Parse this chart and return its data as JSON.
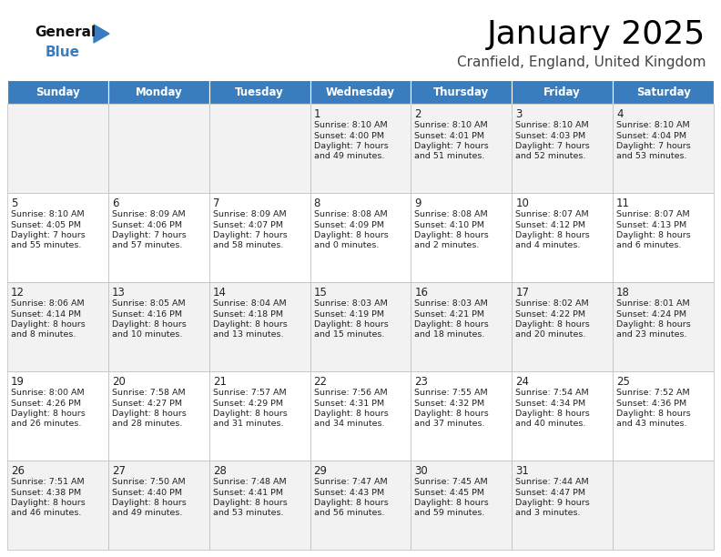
{
  "title": "January 2025",
  "subtitle": "Cranfield, England, United Kingdom",
  "header_color": "#3a7dbf",
  "header_text_color": "#ffffff",
  "weekdays": [
    "Sunday",
    "Monday",
    "Tuesday",
    "Wednesday",
    "Thursday",
    "Friday",
    "Saturday"
  ],
  "row_colors": [
    "#f2f2f2",
    "#ffffff"
  ],
  "text_color": "#222222",
  "days": [
    {
      "day": 1,
      "col": 3,
      "row": 0,
      "sunrise": "8:10 AM",
      "sunset": "4:00 PM",
      "dl1": "Daylight: 7 hours",
      "dl2": "and 49 minutes."
    },
    {
      "day": 2,
      "col": 4,
      "row": 0,
      "sunrise": "8:10 AM",
      "sunset": "4:01 PM",
      "dl1": "Daylight: 7 hours",
      "dl2": "and 51 minutes."
    },
    {
      "day": 3,
      "col": 5,
      "row": 0,
      "sunrise": "8:10 AM",
      "sunset": "4:03 PM",
      "dl1": "Daylight: 7 hours",
      "dl2": "and 52 minutes."
    },
    {
      "day": 4,
      "col": 6,
      "row": 0,
      "sunrise": "8:10 AM",
      "sunset": "4:04 PM",
      "dl1": "Daylight: 7 hours",
      "dl2": "and 53 minutes."
    },
    {
      "day": 5,
      "col": 0,
      "row": 1,
      "sunrise": "8:10 AM",
      "sunset": "4:05 PM",
      "dl1": "Daylight: 7 hours",
      "dl2": "and 55 minutes."
    },
    {
      "day": 6,
      "col": 1,
      "row": 1,
      "sunrise": "8:09 AM",
      "sunset": "4:06 PM",
      "dl1": "Daylight: 7 hours",
      "dl2": "and 57 minutes."
    },
    {
      "day": 7,
      "col": 2,
      "row": 1,
      "sunrise": "8:09 AM",
      "sunset": "4:07 PM",
      "dl1": "Daylight: 7 hours",
      "dl2": "and 58 minutes."
    },
    {
      "day": 8,
      "col": 3,
      "row": 1,
      "sunrise": "8:08 AM",
      "sunset": "4:09 PM",
      "dl1": "Daylight: 8 hours",
      "dl2": "and 0 minutes."
    },
    {
      "day": 9,
      "col": 4,
      "row": 1,
      "sunrise": "8:08 AM",
      "sunset": "4:10 PM",
      "dl1": "Daylight: 8 hours",
      "dl2": "and 2 minutes."
    },
    {
      "day": 10,
      "col": 5,
      "row": 1,
      "sunrise": "8:07 AM",
      "sunset": "4:12 PM",
      "dl1": "Daylight: 8 hours",
      "dl2": "and 4 minutes."
    },
    {
      "day": 11,
      "col": 6,
      "row": 1,
      "sunrise": "8:07 AM",
      "sunset": "4:13 PM",
      "dl1": "Daylight: 8 hours",
      "dl2": "and 6 minutes."
    },
    {
      "day": 12,
      "col": 0,
      "row": 2,
      "sunrise": "8:06 AM",
      "sunset": "4:14 PM",
      "dl1": "Daylight: 8 hours",
      "dl2": "and 8 minutes."
    },
    {
      "day": 13,
      "col": 1,
      "row": 2,
      "sunrise": "8:05 AM",
      "sunset": "4:16 PM",
      "dl1": "Daylight: 8 hours",
      "dl2": "and 10 minutes."
    },
    {
      "day": 14,
      "col": 2,
      "row": 2,
      "sunrise": "8:04 AM",
      "sunset": "4:18 PM",
      "dl1": "Daylight: 8 hours",
      "dl2": "and 13 minutes."
    },
    {
      "day": 15,
      "col": 3,
      "row": 2,
      "sunrise": "8:03 AM",
      "sunset": "4:19 PM",
      "dl1": "Daylight: 8 hours",
      "dl2": "and 15 minutes."
    },
    {
      "day": 16,
      "col": 4,
      "row": 2,
      "sunrise": "8:03 AM",
      "sunset": "4:21 PM",
      "dl1": "Daylight: 8 hours",
      "dl2": "and 18 minutes."
    },
    {
      "day": 17,
      "col": 5,
      "row": 2,
      "sunrise": "8:02 AM",
      "sunset": "4:22 PM",
      "dl1": "Daylight: 8 hours",
      "dl2": "and 20 minutes."
    },
    {
      "day": 18,
      "col": 6,
      "row": 2,
      "sunrise": "8:01 AM",
      "sunset": "4:24 PM",
      "dl1": "Daylight: 8 hours",
      "dl2": "and 23 minutes."
    },
    {
      "day": 19,
      "col": 0,
      "row": 3,
      "sunrise": "8:00 AM",
      "sunset": "4:26 PM",
      "dl1": "Daylight: 8 hours",
      "dl2": "and 26 minutes."
    },
    {
      "day": 20,
      "col": 1,
      "row": 3,
      "sunrise": "7:58 AM",
      "sunset": "4:27 PM",
      "dl1": "Daylight: 8 hours",
      "dl2": "and 28 minutes."
    },
    {
      "day": 21,
      "col": 2,
      "row": 3,
      "sunrise": "7:57 AM",
      "sunset": "4:29 PM",
      "dl1": "Daylight: 8 hours",
      "dl2": "and 31 minutes."
    },
    {
      "day": 22,
      "col": 3,
      "row": 3,
      "sunrise": "7:56 AM",
      "sunset": "4:31 PM",
      "dl1": "Daylight: 8 hours",
      "dl2": "and 34 minutes."
    },
    {
      "day": 23,
      "col": 4,
      "row": 3,
      "sunrise": "7:55 AM",
      "sunset": "4:32 PM",
      "dl1": "Daylight: 8 hours",
      "dl2": "and 37 minutes."
    },
    {
      "day": 24,
      "col": 5,
      "row": 3,
      "sunrise": "7:54 AM",
      "sunset": "4:34 PM",
      "dl1": "Daylight: 8 hours",
      "dl2": "and 40 minutes."
    },
    {
      "day": 25,
      "col": 6,
      "row": 3,
      "sunrise": "7:52 AM",
      "sunset": "4:36 PM",
      "dl1": "Daylight: 8 hours",
      "dl2": "and 43 minutes."
    },
    {
      "day": 26,
      "col": 0,
      "row": 4,
      "sunrise": "7:51 AM",
      "sunset": "4:38 PM",
      "dl1": "Daylight: 8 hours",
      "dl2": "and 46 minutes."
    },
    {
      "day": 27,
      "col": 1,
      "row": 4,
      "sunrise": "7:50 AM",
      "sunset": "4:40 PM",
      "dl1": "Daylight: 8 hours",
      "dl2": "and 49 minutes."
    },
    {
      "day": 28,
      "col": 2,
      "row": 4,
      "sunrise": "7:48 AM",
      "sunset": "4:41 PM",
      "dl1": "Daylight: 8 hours",
      "dl2": "and 53 minutes."
    },
    {
      "day": 29,
      "col": 3,
      "row": 4,
      "sunrise": "7:47 AM",
      "sunset": "4:43 PM",
      "dl1": "Daylight: 8 hours",
      "dl2": "and 56 minutes."
    },
    {
      "day": 30,
      "col": 4,
      "row": 4,
      "sunrise": "7:45 AM",
      "sunset": "4:45 PM",
      "dl1": "Daylight: 8 hours",
      "dl2": "and 59 minutes."
    },
    {
      "day": 31,
      "col": 5,
      "row": 4,
      "sunrise": "7:44 AM",
      "sunset": "4:47 PM",
      "dl1": "Daylight: 9 hours",
      "dl2": "and 3 minutes."
    }
  ],
  "logo_general_color": "#111111",
  "logo_blue_color": "#3a7dbf",
  "logo_triangle_color": "#3a7dbf"
}
